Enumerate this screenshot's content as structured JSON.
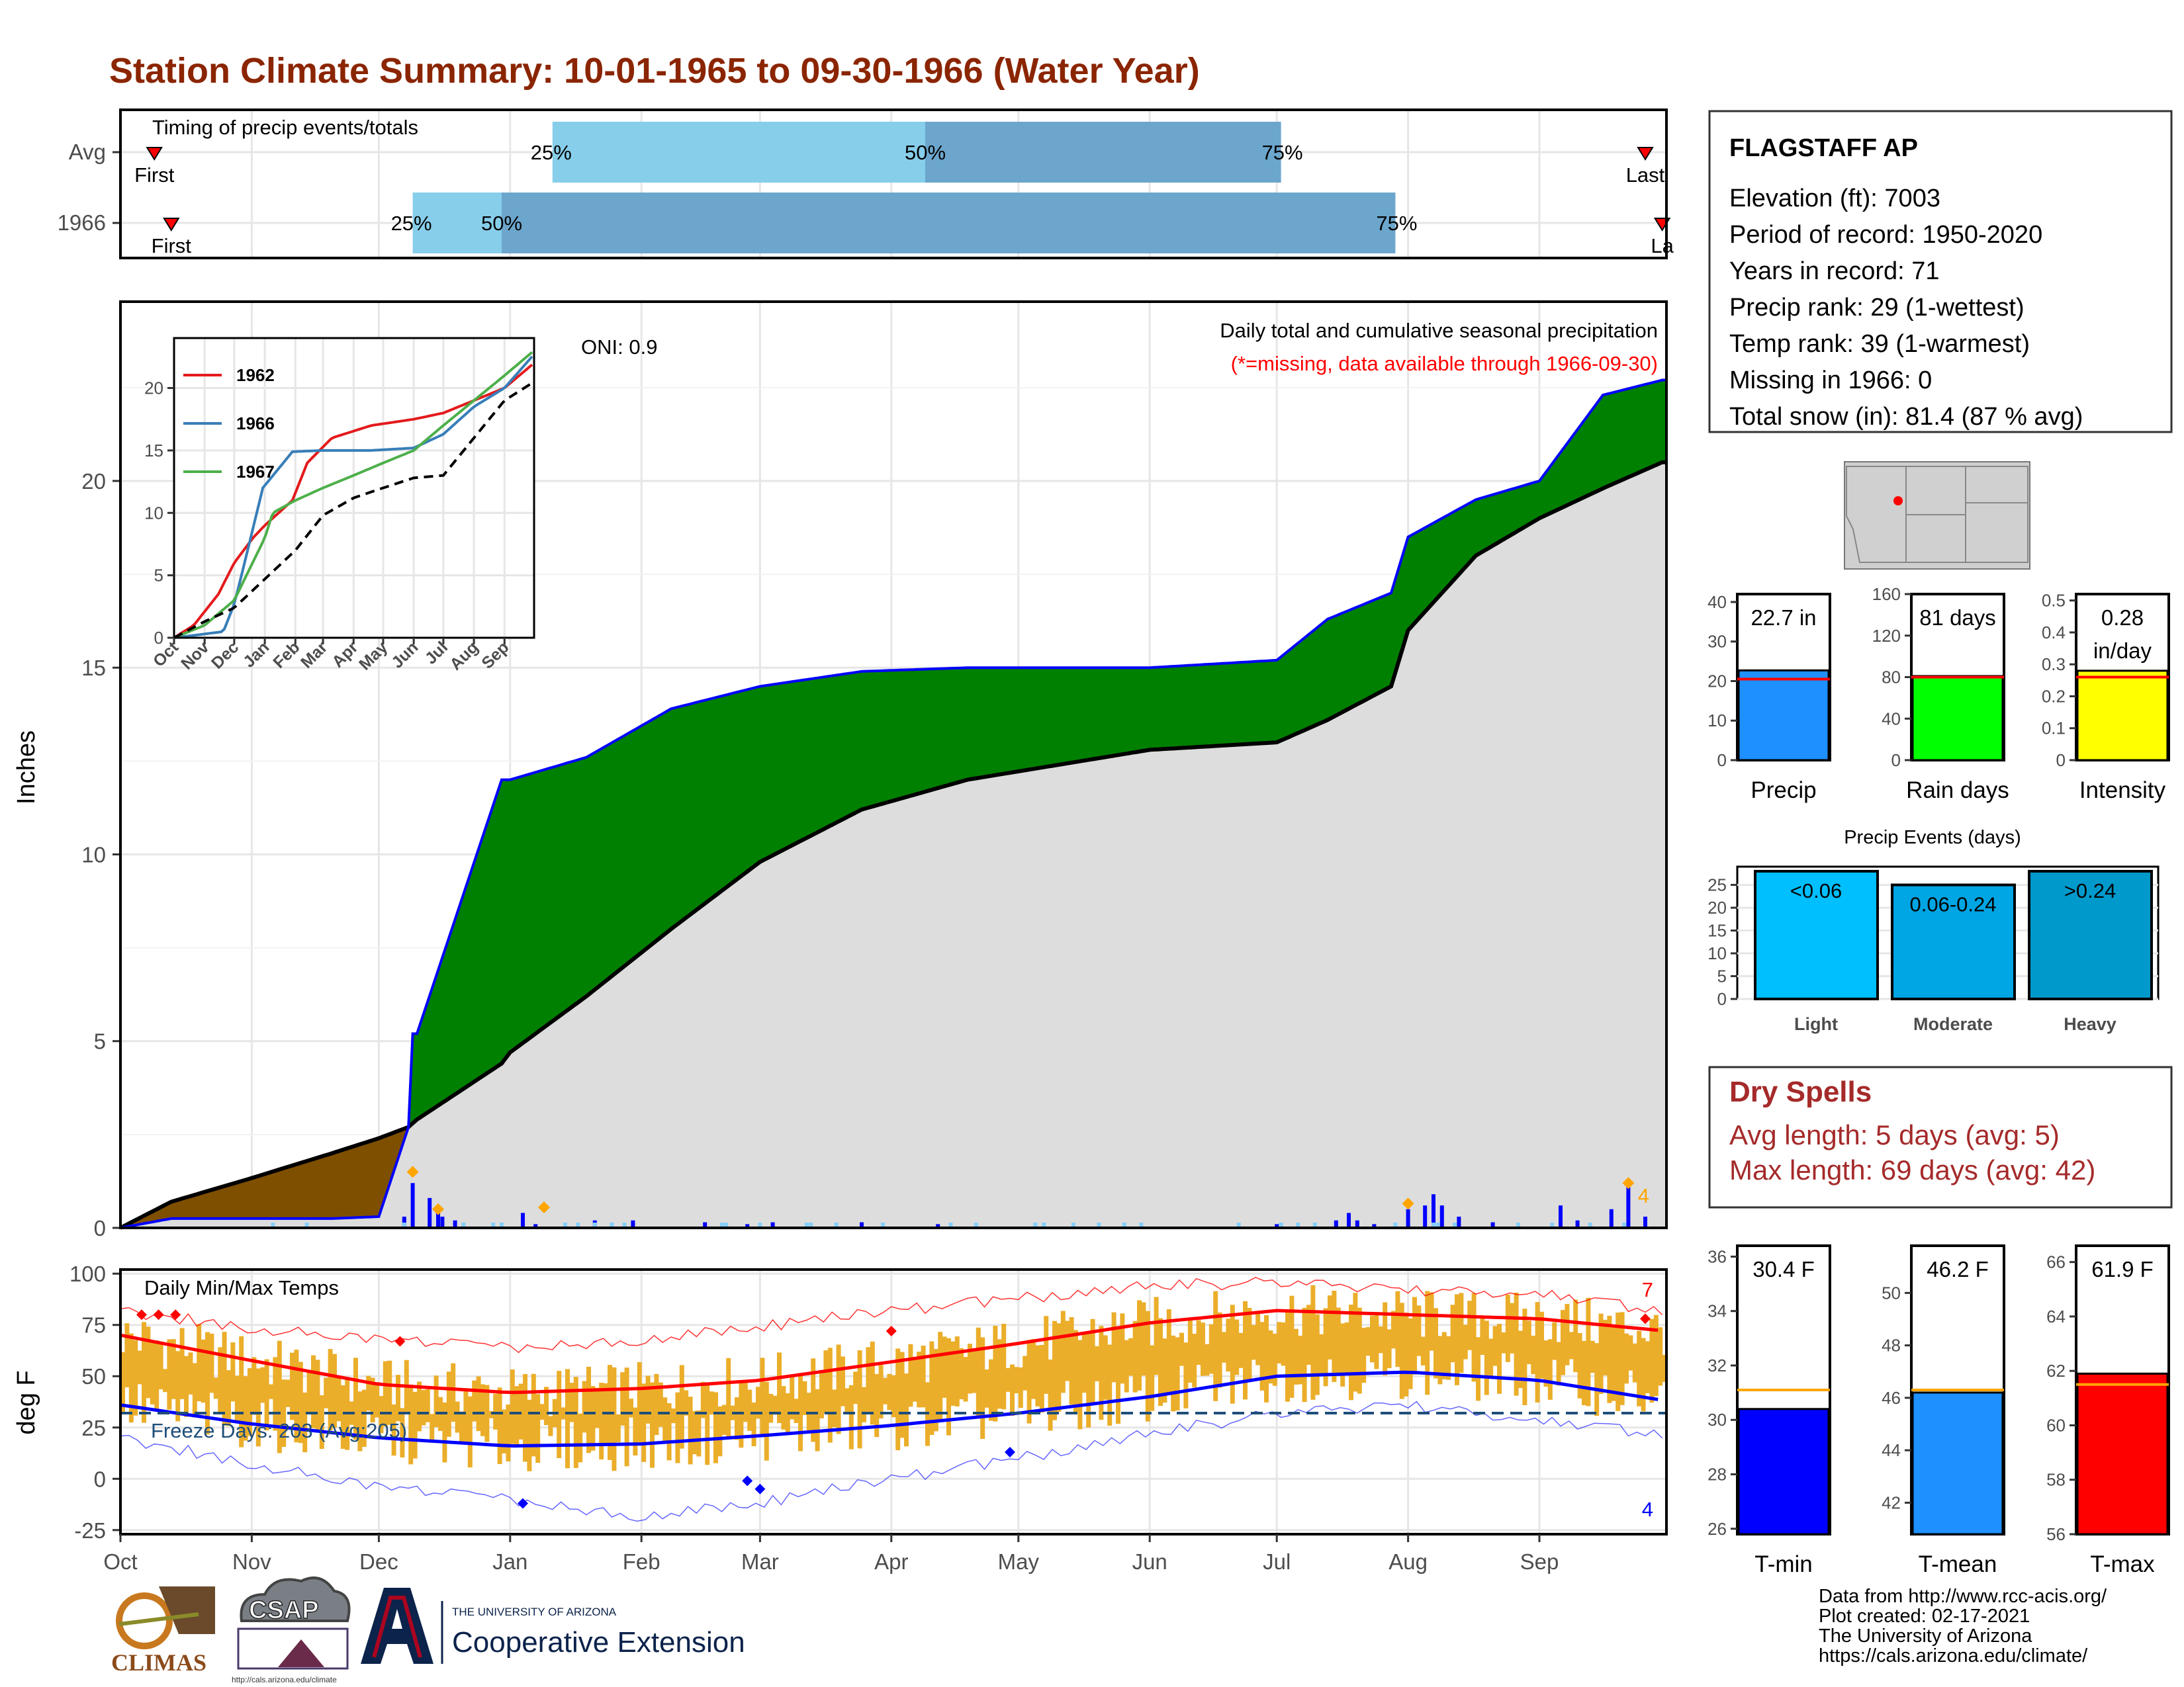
{
  "title": "Station Climate Summary: 10-01-1965 to 09-30-1966 (Water Year)",
  "colors": {
    "title": "#8B2500",
    "green": "#008000",
    "brown": "#7F4F00",
    "blue": "#0000FF",
    "gray": "#DDDDDD",
    "light_blue": "#87CEEB",
    "mid_blue": "#6CA6CD",
    "temp_fill": "#EBAE2A",
    "red": "#FF0000",
    "dark_red": "#A52A2A"
  },
  "timing": {
    "label": "Timing of precip events/totals",
    "rows": [
      {
        "name": "Avg",
        "first_label": "First",
        "last_label": "Last",
        "first_day": 8,
        "last_day": 360,
        "q25": 102,
        "q50": 190,
        "q75": 274,
        "p25": "25%",
        "p50": "50%",
        "p75": "75%"
      },
      {
        "name": "1966",
        "first_label": "First",
        "last_label": "La",
        "first_day": 12,
        "last_day": 364,
        "q25": 69,
        "q50": 90,
        "q75": 301,
        "p25": "25%",
        "p50": "50%",
        "p75": "75%"
      }
    ]
  },
  "main_chart": {
    "ylabel": "Inches",
    "header": "Daily total and cumulative seasonal precipitation",
    "subheader": "(*=missing, data available through 1966-09-30)",
    "oni": "ONI: 0.9",
    "yticks": [
      0,
      5,
      10,
      15,
      20
    ],
    "ylim": [
      0,
      24.8
    ],
    "corner_count": "4"
  },
  "months": [
    "Oct",
    "Nov",
    "Dec",
    "Jan",
    "Feb",
    "Mar",
    "Apr",
    "May",
    "Jun",
    "Jul",
    "Aug",
    "Sep"
  ],
  "month_starts": [
    0,
    31,
    61,
    92,
    123,
    151,
    182,
    212,
    243,
    273,
    304,
    335
  ],
  "chart_data": [
    {
      "type": "area",
      "name": "Cumulative precipitation (1966 vs average)",
      "x": [
        0,
        12,
        30,
        50,
        61,
        68,
        69,
        70,
        90,
        92,
        110,
        130,
        151,
        175,
        200,
        243,
        273,
        285,
        300,
        304,
        320,
        335,
        350,
        364
      ],
      "cumulative_1966": [
        0,
        0.25,
        0.25,
        0.25,
        0.3,
        2.7,
        5.2,
        5.2,
        12.0,
        12.0,
        12.6,
        13.9,
        14.5,
        14.9,
        15.0,
        15.0,
        15.2,
        16.3,
        17.0,
        18.5,
        19.5,
        20.0,
        22.3,
        22.7
      ],
      "cumulative_avg": [
        0,
        0.7,
        1.3,
        2.0,
        2.4,
        2.7,
        2.8,
        2.9,
        4.4,
        4.7,
        6.2,
        8.0,
        9.8,
        11.2,
        12.0,
        12.8,
        13.0,
        13.6,
        14.5,
        16.0,
        18.0,
        19.0,
        19.8,
        20.5
      ],
      "daily_bars": [
        [
          67,
          0.3
        ],
        [
          69,
          1.2
        ],
        [
          73,
          0.8
        ],
        [
          75,
          0.4
        ],
        [
          76,
          0.3
        ],
        [
          79,
          0.2
        ],
        [
          95,
          0.4
        ],
        [
          98,
          0.1
        ],
        [
          112,
          0.2
        ],
        [
          121,
          0.2
        ],
        [
          138,
          0.15
        ],
        [
          148,
          0.1
        ],
        [
          154,
          0.15
        ],
        [
          175,
          0.15
        ],
        [
          193,
          0.1
        ],
        [
          273,
          0.1
        ],
        [
          287,
          0.2
        ],
        [
          290,
          0.4
        ],
        [
          292,
          0.2
        ],
        [
          296,
          0.1
        ],
        [
          304,
          0.5
        ],
        [
          308,
          0.6
        ],
        [
          310,
          0.9
        ],
        [
          312,
          0.6
        ],
        [
          316,
          0.3
        ],
        [
          324,
          0.15
        ],
        [
          340,
          0.6
        ],
        [
          344,
          0.2
        ],
        [
          352,
          0.5
        ],
        [
          356,
          1.1
        ],
        [
          360,
          0.3
        ]
      ],
      "ylim": [
        0,
        24.8
      ]
    },
    {
      "type": "line",
      "name": "Inset cumulative precipitation",
      "series": [
        {
          "name": "1962",
          "x": [
            0,
            20,
            30,
            45,
            61,
            80,
            92,
            120,
            135,
            160,
            200,
            243,
            273,
            304,
            335,
            365
          ],
          "values": [
            0,
            1,
            2,
            3.5,
            6,
            8,
            9,
            11,
            14,
            16,
            17,
            17.5,
            18,
            19,
            20,
            22
          ]
        },
        {
          "name": "1966",
          "x": [
            0,
            31,
            50,
            61,
            69,
            90,
            120,
            151,
            200,
            243,
            273,
            304,
            335,
            365
          ],
          "values": [
            0,
            0.3,
            0.5,
            2.7,
            5.2,
            12,
            14.9,
            15,
            15,
            15.2,
            16.3,
            18.5,
            20,
            22.7
          ]
        },
        {
          "name": "1967",
          "x": [
            0,
            31,
            61,
            92,
            100,
            123,
            151,
            182,
            212,
            243,
            273,
            304,
            335,
            365
          ],
          "values": [
            0,
            1,
            3,
            8,
            10,
            11,
            12,
            13,
            14,
            15,
            17,
            19,
            21,
            23
          ]
        },
        {
          "name": "avg",
          "x": [
            0,
            31,
            61,
            92,
            123,
            151,
            182,
            212,
            243,
            273,
            304,
            335,
            365
          ],
          "values": [
            0,
            1.3,
            2.4,
            4.7,
            7,
            9.8,
            11.2,
            12,
            12.8,
            13,
            16,
            19,
            20.5
          ]
        }
      ],
      "ylim": [
        0,
        24
      ],
      "yticks": [
        0,
        5,
        10,
        15,
        20
      ]
    },
    {
      "type": "area",
      "name": "Daily Min/Max Temps",
      "title": "Daily Min/Max Temps",
      "ylabel": "deg F",
      "yticks": [
        -25,
        0,
        25,
        50,
        75,
        100
      ],
      "ylim": [
        -27,
        102
      ],
      "freeze_label": "Freeze Days: 203 (Avg:205)",
      "freeze_line": 32,
      "record_high_count": "7",
      "record_low_count": "4",
      "avg_high": {
        "x": [
          0,
          30,
          61,
          92,
          123,
          151,
          182,
          212,
          243,
          273,
          304,
          335,
          365
        ],
        "values": [
          70,
          58,
          46,
          42,
          44,
          48,
          57,
          66,
          76,
          82,
          80,
          78,
          72
        ]
      },
      "avg_low": {
        "x": [
          0,
          30,
          61,
          92,
          123,
          151,
          182,
          212,
          243,
          273,
          304,
          335,
          365
        ],
        "values": [
          36,
          27,
          20,
          16,
          17,
          21,
          26,
          32,
          40,
          50,
          52,
          48,
          38
        ]
      },
      "record_high": {
        "x": [
          0,
          30,
          61,
          92,
          123,
          151,
          182,
          212,
          243,
          273,
          304,
          335,
          365
        ],
        "values": [
          82,
          74,
          68,
          64,
          68,
          74,
          82,
          88,
          94,
          96,
          92,
          90,
          82
        ]
      },
      "record_low": {
        "x": [
          0,
          30,
          61,
          92,
          123,
          151,
          182,
          212,
          243,
          273,
          304,
          335,
          365
        ],
        "values": [
          20,
          8,
          -4,
          -10,
          -18,
          -12,
          0,
          10,
          22,
          32,
          36,
          28,
          22
        ]
      }
    },
    {
      "type": "bar",
      "name": "Precip totals",
      "categories": [
        "Precip",
        "Rain days",
        "Intensity"
      ],
      "values": [
        22.7,
        81,
        0.28
      ],
      "averages": [
        20.5,
        80,
        0.26
      ],
      "labels": [
        "22.7 in",
        "81 days",
        "0.28 in/day"
      ],
      "ylims": [
        [
          0,
          42
        ],
        [
          0,
          160
        ],
        [
          0,
          0.52
        ]
      ],
      "yticks": [
        [
          0,
          10,
          20,
          30,
          40
        ],
        [
          0,
          40,
          80,
          120,
          160
        ],
        [
          0.0,
          0.1,
          0.2,
          0.3,
          0.4,
          0.5
        ]
      ]
    },
    {
      "type": "bar",
      "name": "Precip Events (days)",
      "title": "Precip Events (days)",
      "categories": [
        "Light",
        "Moderate",
        "Heavy"
      ],
      "bar_labels": [
        "<0.06",
        "0.06-0.24",
        ">0.24"
      ],
      "values": [
        28,
        25,
        28
      ],
      "ylim": [
        0,
        29
      ],
      "yticks": [
        0,
        5,
        10,
        15,
        20,
        25
      ]
    },
    {
      "type": "bar",
      "name": "Mean temperatures",
      "categories": [
        "T-min",
        "T-mean",
        "T-max"
      ],
      "values": [
        30.4,
        46.2,
        61.9
      ],
      "averages": [
        31.1,
        46.3,
        61.5
      ],
      "labels": [
        "30.4 F",
        "46.2 F",
        "61.9 F"
      ],
      "ylims": [
        [
          25.8,
          36.4
        ],
        [
          40.8,
          51.8
        ],
        [
          56,
          66.6
        ]
      ],
      "yticks": [
        [
          26,
          28,
          30,
          32,
          34,
          36
        ],
        [
          42,
          44,
          46,
          48,
          50
        ],
        [
          56,
          58,
          60,
          62,
          64,
          66
        ]
      ]
    }
  ],
  "station": {
    "name": "FLAGSTAFF AP",
    "lines": [
      "Elevation (ft): 7003",
      "Period of record: 1950-2020",
      "Years in record: 71",
      "Precip rank: 29 (1-wettest)",
      "Temp rank: 39 (1-warmest)",
      "Missing in 1966: 0",
      "Total snow (in): 81.4 (87 % avg)"
    ]
  },
  "dry_spells": {
    "title": "Dry Spells",
    "avg": "Avg length: 5 days (avg: 5)",
    "max": "Max length: 69 days (avg: 42)"
  },
  "footer": {
    "lines": [
      "Data from http://www.rcc-acis.org/",
      "Plot created: 02-17-2021",
      "The University of Arizona",
      "https://cals.arizona.edu/climate/"
    ],
    "climas": "CLIMAS",
    "csap": "CSAP",
    "csap_url": "http://cals.arizona.edu/climate",
    "ua_small": "THE UNIVERSITY OF ARIZONA",
    "ua_big": "Cooperative Extension"
  }
}
